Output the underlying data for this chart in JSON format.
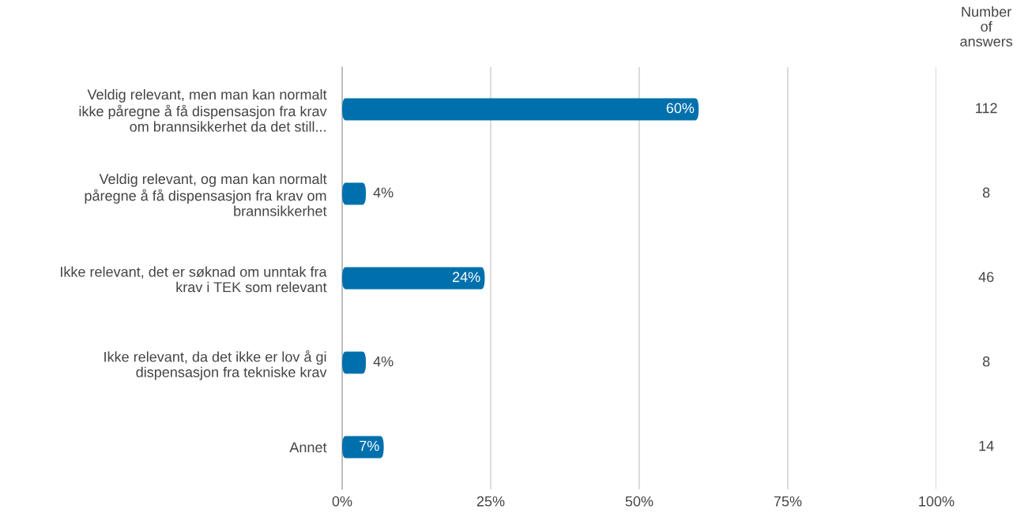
{
  "chart_data": {
    "type": "bar",
    "orientation": "horizontal",
    "categories": [
      "Veldig relevant, men man kan normalt\nikke påregne å få dispensasjon fra krav\nom brannsikkerhet da det still...",
      "Veldig relevant, og man kan normalt\npåregne å få dispensasjon fra krav om\nbrannsikkerhet",
      "Ikke relevant, det er søknad om unntak fra\nkrav i TEK som relevant",
      "Ikke relevant, da det ikke er lov å gi\ndispensasjon fra tekniske krav",
      "Annet"
    ],
    "values": [
      60,
      4,
      24,
      4,
      7
    ],
    "value_labels": [
      "60%",
      "4%",
      "24%",
      "4%",
      "7%"
    ],
    "color": "#0070ad",
    "xlim": [
      0,
      100
    ],
    "xticks": [
      {
        "value": 0,
        "label": "0%"
      },
      {
        "value": 25,
        "label": "25%"
      },
      {
        "value": 50,
        "label": "50%"
      },
      {
        "value": 75,
        "label": "75%"
      },
      {
        "value": 100,
        "label": "100%"
      }
    ],
    "grid": "x",
    "annotations": [
      "Number\nof\nanswers",
      "112",
      "8",
      "46",
      "8",
      "14"
    ]
  }
}
